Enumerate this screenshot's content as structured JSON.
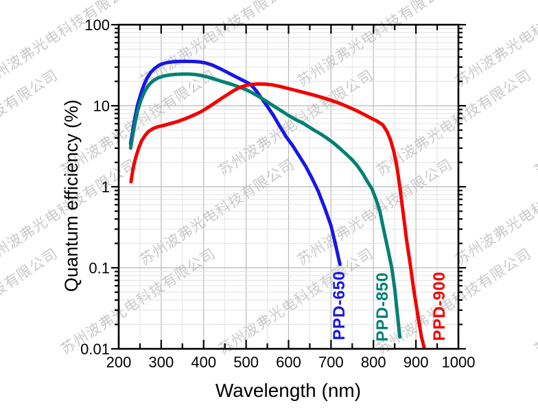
{
  "watermark": {
    "text": "苏州波弗光电科技有限公司"
  },
  "chart_data": {
    "type": "line",
    "title": "",
    "xlabel": "Wavelength (nm)",
    "ylabel": "Quantum efficiency (%)",
    "x_scale": "linear",
    "y_scale": "log",
    "xlim": [
      200,
      1000
    ],
    "ylim": [
      0.01,
      100
    ],
    "x_ticks": [
      200,
      300,
      400,
      500,
      600,
      700,
      800,
      900,
      1000
    ],
    "x_minor_step": 50,
    "y_ticks": [
      100,
      10,
      1,
      0.1,
      0.01
    ],
    "y_tick_labels": [
      "100",
      "10",
      "1",
      "0.1",
      "0.01"
    ],
    "grid": {
      "major": true,
      "minor": true
    },
    "legend_position": "rotated-labels-near-curve-tails",
    "series": [
      {
        "name": "PPD-650",
        "color": "#1717E6",
        "points": [
          [
            228,
            3.4
          ],
          [
            233,
            4.9
          ],
          [
            238,
            7.0
          ],
          [
            244,
            10.0
          ],
          [
            252,
            14.0
          ],
          [
            260,
            18.5
          ],
          [
            268,
            22.5
          ],
          [
            276,
            26.0
          ],
          [
            285,
            29.0
          ],
          [
            295,
            31.6
          ],
          [
            305,
            33.2
          ],
          [
            315,
            34.2
          ],
          [
            330,
            35.0
          ],
          [
            345,
            35.3
          ],
          [
            360,
            35.3
          ],
          [
            375,
            35.2
          ],
          [
            390,
            34.8
          ],
          [
            405,
            33.7
          ],
          [
            420,
            31.9
          ],
          [
            438,
            28.8
          ],
          [
            454,
            26.1
          ],
          [
            470,
            23.6
          ],
          [
            486,
            21.4
          ],
          [
            502,
            19.4
          ],
          [
            510,
            18.4
          ],
          [
            518,
            16.6
          ],
          [
            527,
            14.6
          ],
          [
            535,
            12.6
          ],
          [
            550,
            9.8
          ],
          [
            565,
            7.5
          ],
          [
            580,
            5.5
          ],
          [
            595,
            4.1
          ],
          [
            610,
            3.2
          ],
          [
            625,
            2.4
          ],
          [
            640,
            1.8
          ],
          [
            655,
            1.28
          ],
          [
            670,
            0.88
          ],
          [
            685,
            0.55
          ],
          [
            700,
            0.33
          ],
          [
            710,
            0.2
          ],
          [
            718,
            0.13
          ],
          [
            721,
            0.11
          ]
        ]
      },
      {
        "name": "PPD-850",
        "color": "#008073",
        "points": [
          [
            228,
            3.0
          ],
          [
            233,
            4.3
          ],
          [
            238,
            6.0
          ],
          [
            244,
            8.5
          ],
          [
            252,
            11.6
          ],
          [
            260,
            14.6
          ],
          [
            268,
            17.2
          ],
          [
            276,
            19.3
          ],
          [
            285,
            21.0
          ],
          [
            295,
            22.3
          ],
          [
            305,
            23.2
          ],
          [
            320,
            24.0
          ],
          [
            335,
            24.4
          ],
          [
            350,
            24.6
          ],
          [
            365,
            24.6
          ],
          [
            380,
            24.3
          ],
          [
            395,
            23.6
          ],
          [
            410,
            22.6
          ],
          [
            425,
            21.4
          ],
          [
            440,
            20.2
          ],
          [
            455,
            19.1
          ],
          [
            470,
            18.1
          ],
          [
            485,
            16.9
          ],
          [
            500,
            15.8
          ],
          [
            515,
            14.4
          ],
          [
            530,
            13.0
          ],
          [
            545,
            11.6
          ],
          [
            560,
            10.3
          ],
          [
            575,
            9.2
          ],
          [
            590,
            8.2
          ],
          [
            605,
            7.3
          ],
          [
            620,
            6.6
          ],
          [
            632,
            6.2
          ],
          [
            645,
            5.6
          ],
          [
            660,
            5.0
          ],
          [
            675,
            4.5
          ],
          [
            690,
            4.0
          ],
          [
            705,
            3.5
          ],
          [
            720,
            3.0
          ],
          [
            735,
            2.55
          ],
          [
            750,
            2.15
          ],
          [
            762,
            1.82
          ],
          [
            775,
            1.45
          ],
          [
            786,
            1.15
          ],
          [
            796,
            0.95
          ],
          [
            806,
            0.7
          ],
          [
            815,
            0.5
          ],
          [
            825,
            0.28
          ],
          [
            835,
            0.16
          ],
          [
            843,
            0.1
          ],
          [
            850,
            0.055
          ],
          [
            856,
            0.028
          ],
          [
            862,
            0.014
          ]
        ]
      },
      {
        "name": "PPD-900",
        "color": "#F20000",
        "points": [
          [
            229,
            1.15
          ],
          [
            234,
            1.7
          ],
          [
            240,
            2.3
          ],
          [
            247,
            3.0
          ],
          [
            254,
            3.7
          ],
          [
            262,
            4.3
          ],
          [
            270,
            4.8
          ],
          [
            280,
            5.2
          ],
          [
            292,
            5.5
          ],
          [
            305,
            5.7
          ],
          [
            320,
            6.0
          ],
          [
            335,
            6.3
          ],
          [
            350,
            6.7
          ],
          [
            365,
            7.2
          ],
          [
            380,
            7.8
          ],
          [
            395,
            8.5
          ],
          [
            410,
            9.5
          ],
          [
            425,
            10.7
          ],
          [
            440,
            12.1
          ],
          [
            455,
            13.6
          ],
          [
            470,
            15.3
          ],
          [
            485,
            16.8
          ],
          [
            500,
            17.9
          ],
          [
            515,
            18.4
          ],
          [
            530,
            18.6
          ],
          [
            545,
            18.5
          ],
          [
            562,
            18.1
          ],
          [
            580,
            17.3
          ],
          [
            600,
            16.3
          ],
          [
            620,
            15.3
          ],
          [
            640,
            14.4
          ],
          [
            660,
            13.5
          ],
          [
            680,
            12.6
          ],
          [
            700,
            11.7
          ],
          [
            720,
            10.7
          ],
          [
            740,
            9.7
          ],
          [
            760,
            8.7
          ],
          [
            778,
            7.8
          ],
          [
            795,
            7.0
          ],
          [
            810,
            6.4
          ],
          [
            822,
            5.8
          ],
          [
            832,
            4.8
          ],
          [
            840,
            3.8
          ],
          [
            848,
            2.7
          ],
          [
            855,
            1.8
          ],
          [
            862,
            1.0
          ],
          [
            870,
            0.47
          ],
          [
            878,
            0.22
          ],
          [
            886,
            0.115
          ],
          [
            895,
            0.053
          ],
          [
            905,
            0.025
          ],
          [
            913,
            0.014
          ],
          [
            919,
            0.0105
          ]
        ]
      }
    ]
  }
}
